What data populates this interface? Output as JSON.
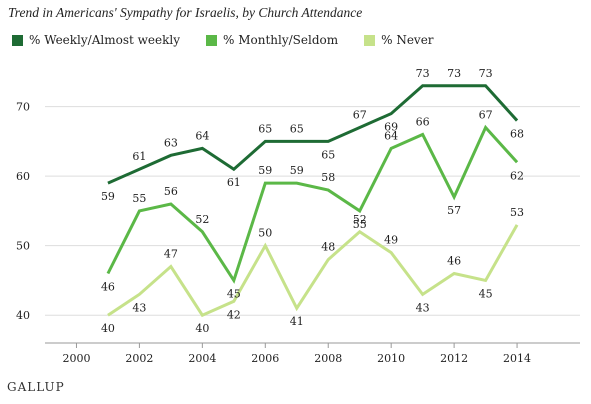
{
  "chart_data": {
    "type": "line",
    "title": "Trend in Americans' Sympathy for Israelis, by Church Attendance",
    "x": [
      2001,
      2002,
      2003,
      2004,
      2005,
      2006,
      2007,
      2008,
      2009,
      2010,
      2011,
      2012,
      2013,
      2014
    ],
    "series": [
      {
        "name": "% Weekly/Almost weekly",
        "color": "#1e6b34",
        "values": [
          59,
          61,
          63,
          64,
          61,
          65,
          65,
          65,
          67,
          69,
          73,
          73,
          73,
          68
        ]
      },
      {
        "name": "% Monthly/Seldom",
        "color": "#5bb847",
        "values": [
          46,
          55,
          56,
          52,
          45,
          59,
          59,
          58,
          55,
          64,
          66,
          57,
          67,
          62
        ]
      },
      {
        "name": "% Never",
        "color": "#c6e28a",
        "values": [
          40,
          43,
          47,
          40,
          42,
          50,
          41,
          48,
          52,
          49,
          43,
          46,
          45,
          53
        ]
      }
    ],
    "xticks": [
      "2000",
      "2002",
      "2004",
      "2006",
      "2008",
      "2010",
      "2012",
      "2014"
    ],
    "yticks": [
      "40",
      "50",
      "60",
      "70"
    ],
    "xlim": [
      1999,
      2016
    ],
    "ylim": [
      36,
      77
    ],
    "grid": "horizontal",
    "legend": "top-left",
    "brand": "GALLUP"
  }
}
